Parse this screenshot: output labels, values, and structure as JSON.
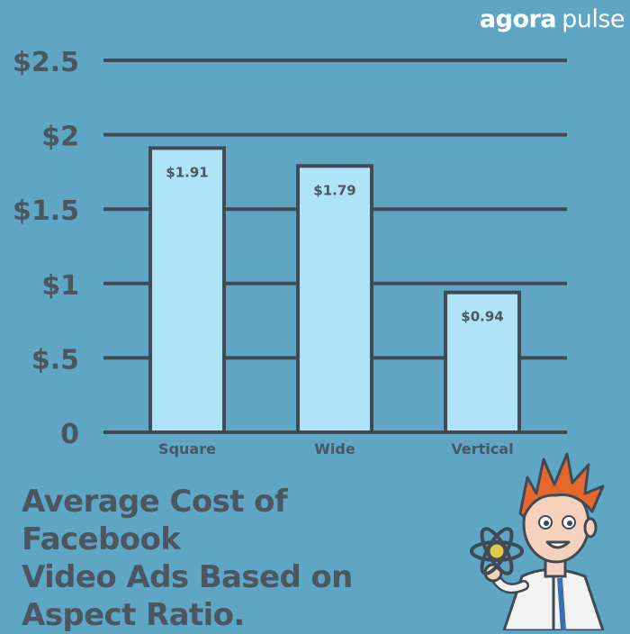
{
  "brand": {
    "part1": "agora",
    "part2": "pulse"
  },
  "headline": {
    "lines": [
      "Average Cost of Facebook",
      "Video Ads Based on",
      "Aspect Ratio."
    ]
  },
  "colors": {
    "background": "#5ea6c4",
    "bar_fill": "#aee4f6",
    "bar_stroke": "#3f4a55",
    "text": "#4b5661",
    "brand": "#ffffff"
  },
  "chart_data": {
    "type": "bar",
    "categories": [
      "Square",
      "Wide",
      "Vertical"
    ],
    "values": [
      1.91,
      1.79,
      0.94
    ],
    "value_labels": [
      "$1.91",
      "$1.79",
      "$0.94"
    ],
    "title": "",
    "xlabel": "",
    "ylabel": "",
    "ylim": [
      0,
      2.5
    ],
    "yticks": [
      0,
      0.5,
      1,
      1.5,
      2,
      2.5
    ],
    "ytick_labels": [
      "0",
      "$.5",
      "$1",
      "$1.5",
      "$2",
      "$2.5"
    ],
    "grid": true,
    "legend": "none"
  }
}
